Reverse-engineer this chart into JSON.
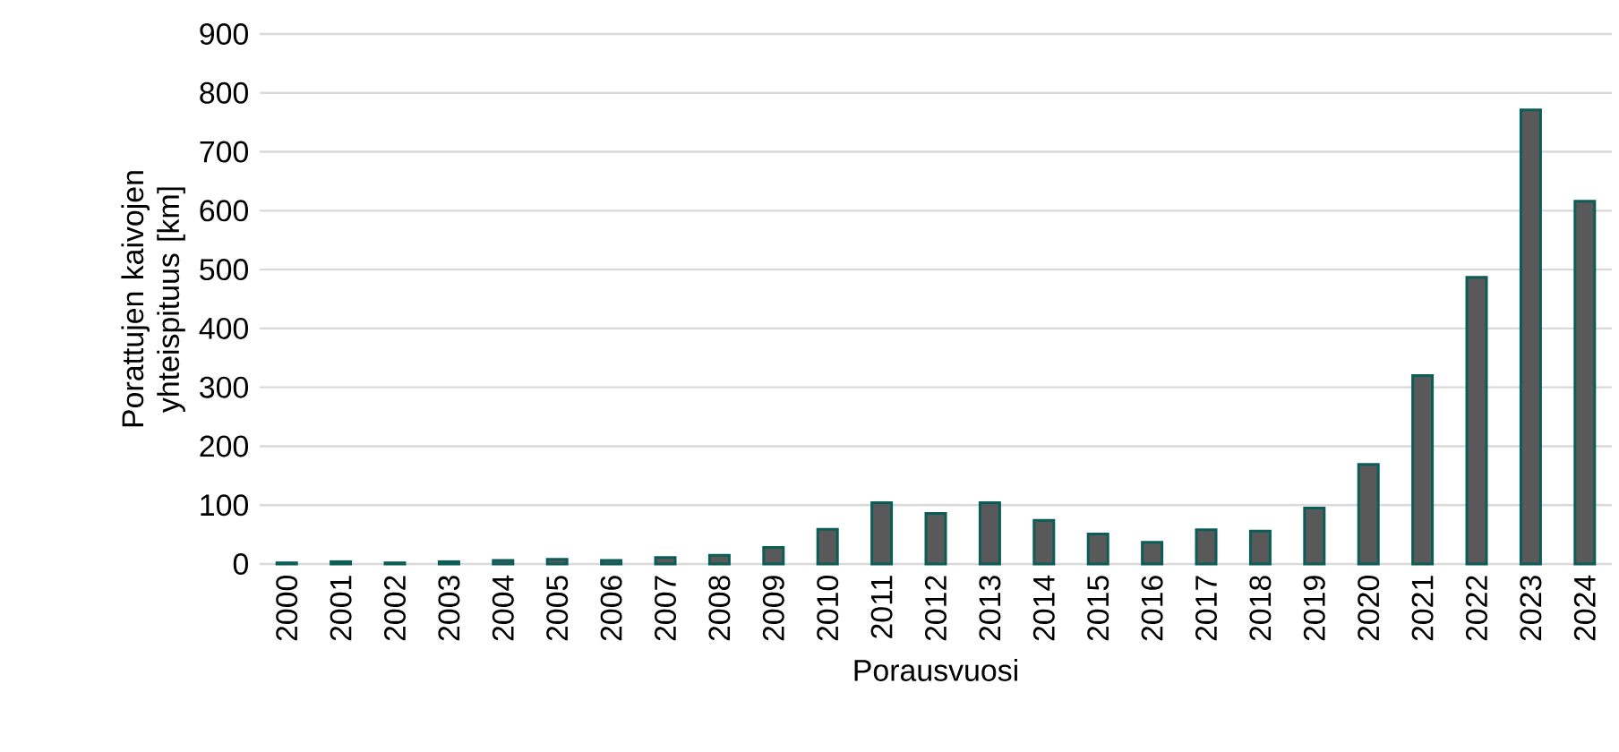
{
  "chart_data": {
    "type": "bar",
    "xlabel": "Porausvuosi",
    "ylabel": "Porattujen kaivojen yhteispituus [km]",
    "categories": [
      "2000",
      "2001",
      "2002",
      "2003",
      "2004",
      "2005",
      "2006",
      "2007",
      "2008",
      "2009",
      "2010",
      "2011",
      "2012",
      "2013",
      "2014",
      "2015",
      "2016",
      "2017",
      "2018",
      "2019",
      "2020",
      "2021",
      "2022",
      "2023",
      "2024"
    ],
    "series": [
      {
        "color": "#595959",
        "values": [
          2,
          4,
          2,
          4,
          6,
          8,
          6,
          11,
          15,
          28,
          59,
          104,
          86,
          104,
          74,
          51,
          37,
          58,
          56,
          95,
          169,
          320,
          487,
          771,
          616
        ]
      }
    ],
    "ylim": [
      0,
      900
    ],
    "yticks": [
      0,
      100,
      200,
      300,
      400,
      500,
      600,
      700,
      800,
      900
    ],
    "grid": "y"
  }
}
